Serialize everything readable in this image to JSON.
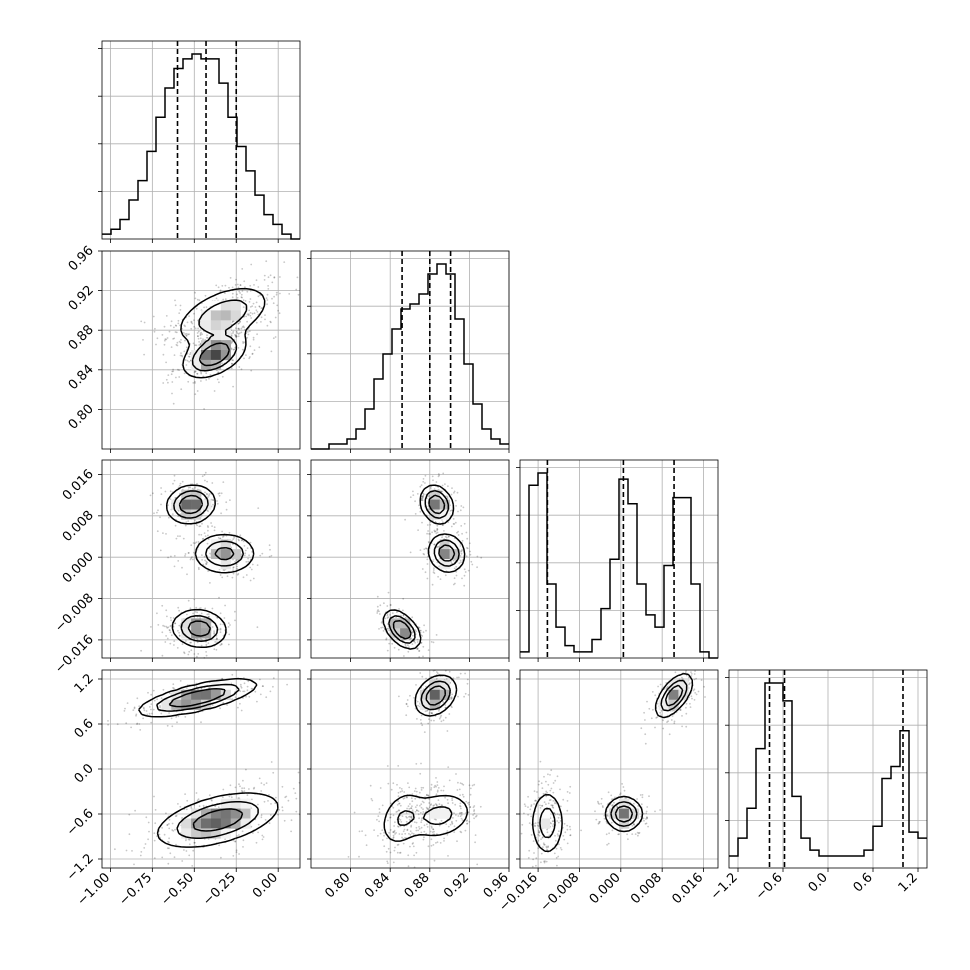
{
  "chart_data": {
    "type": "corner",
    "params": [
      "",
      "",
      "",
      ""
    ],
    "grid": true,
    "ranges": [
      [
        -1.05,
        0.13
      ],
      [
        0.76,
        0.96
      ],
      [
        -0.0195,
        0.0188
      ],
      [
        -1.32,
        1.32
      ]
    ],
    "ticks": [
      [
        "-1.00",
        "-0.75",
        "-0.50",
        "-0.25",
        "0.00"
      ],
      [
        "0.80",
        "0.84",
        "0.88",
        "0.92",
        "0.96"
      ],
      [
        "-0.016",
        "-0.008",
        "0.000",
        "0.008",
        "0.016"
      ],
      [
        "-1.2",
        "-0.6",
        "0.0",
        "0.6",
        "1.2"
      ]
    ],
    "quantiles": [
      [
        -0.6,
        -0.43,
        -0.25
      ],
      [
        0.852,
        0.88,
        0.901
      ],
      [
        -0.0142,
        0.0005,
        0.0103
      ],
      [
        -0.78,
        -0.58,
        1.0
      ]
    ],
    "histograms": [
      {
        "values": [
          1,
          2,
          4,
          8,
          12,
          18,
          25,
          31,
          35,
          37,
          38,
          37,
          37,
          32,
          25,
          19,
          14,
          9,
          5,
          3,
          1,
          0
        ]
      },
      {
        "values": [
          0,
          0,
          1,
          1,
          2,
          4,
          8,
          14,
          19,
          24,
          28,
          29,
          31,
          35,
          37,
          35,
          26,
          17,
          9,
          4,
          2,
          1
        ]
      },
      {
        "values": [
          1,
          28,
          30,
          12,
          5,
          2,
          1,
          1,
          3,
          8,
          16,
          29,
          25,
          12,
          7,
          5,
          15,
          26,
          26,
          12,
          1,
          0
        ]
      },
      {
        "values": [
          2,
          5,
          10,
          20,
          31,
          31,
          28,
          12,
          5,
          3,
          2,
          2,
          2,
          2,
          2,
          3,
          7,
          15,
          17,
          23,
          6,
          5
        ]
      }
    ],
    "pairs": [
      {
        "x": 0,
        "y": 1,
        "modes": [
          {
            "cx": -0.33,
            "cy": 0.895,
            "sx": 0.14,
            "sy": 0.015,
            "rho": 0.5,
            "w": 0.55
          },
          {
            "cx": -0.38,
            "cy": 0.855,
            "sx": 0.09,
            "sy": 0.011,
            "rho": 0.45,
            "w": 0.45
          }
        ]
      },
      {
        "x": 0,
        "y": 2,
        "modes": [
          {
            "cx": -0.52,
            "cy": 0.0102,
            "sx": 0.07,
            "sy": 0.0018,
            "rho": 0.1,
            "w": 0.33
          },
          {
            "cx": -0.32,
            "cy": 0.0007,
            "sx": 0.09,
            "sy": 0.0019,
            "rho": 0.0,
            "w": 0.34
          },
          {
            "cx": -0.47,
            "cy": -0.0138,
            "sx": 0.08,
            "sy": 0.0018,
            "rho": -0.1,
            "w": 0.33
          }
        ]
      },
      {
        "x": 1,
        "y": 2,
        "modes": [
          {
            "cx": 0.887,
            "cy": 0.0102,
            "sx": 0.008,
            "sy": 0.0018,
            "rho": -0.2,
            "w": 0.33
          },
          {
            "cx": 0.897,
            "cy": 0.0008,
            "sx": 0.009,
            "sy": 0.0018,
            "rho": -0.1,
            "w": 0.34
          },
          {
            "cx": 0.852,
            "cy": -0.014,
            "sx": 0.009,
            "sy": 0.0018,
            "rho": -0.5,
            "w": 0.33
          }
        ]
      },
      {
        "x": 0,
        "y": 3,
        "modes": [
          {
            "cx": -0.48,
            "cy": 0.95,
            "sx": 0.17,
            "sy": 0.12,
            "rho": 0.7,
            "w": 0.38
          },
          {
            "cx": -0.36,
            "cy": -0.68,
            "sx": 0.18,
            "sy": 0.18,
            "rho": 0.5,
            "w": 0.62
          }
        ]
      },
      {
        "x": 1,
        "y": 3,
        "modes": [
          {
            "cx": 0.886,
            "cy": 0.98,
            "sx": 0.01,
            "sy": 0.13,
            "rho": 0.3,
            "w": 0.38
          },
          {
            "cx": 0.89,
            "cy": -0.62,
            "sx": 0.017,
            "sy": 0.16,
            "rho": 0.2,
            "w": 0.37
          },
          {
            "cx": 0.852,
            "cy": -0.66,
            "sx": 0.012,
            "sy": 0.2,
            "rho": 0.3,
            "w": 0.25
          }
        ]
      },
      {
        "x": 2,
        "y": 3,
        "modes": [
          {
            "cx": 0.0103,
            "cy": 0.98,
            "sx": 0.0017,
            "sy": 0.14,
            "rho": 0.6,
            "w": 0.34
          },
          {
            "cx": 0.0006,
            "cy": -0.6,
            "sx": 0.0017,
            "sy": 0.11,
            "rho": 0.0,
            "w": 0.33
          },
          {
            "cx": -0.0142,
            "cy": -0.72,
            "sx": 0.0016,
            "sy": 0.22,
            "rho": 0.0,
            "w": 0.33
          }
        ]
      }
    ]
  }
}
